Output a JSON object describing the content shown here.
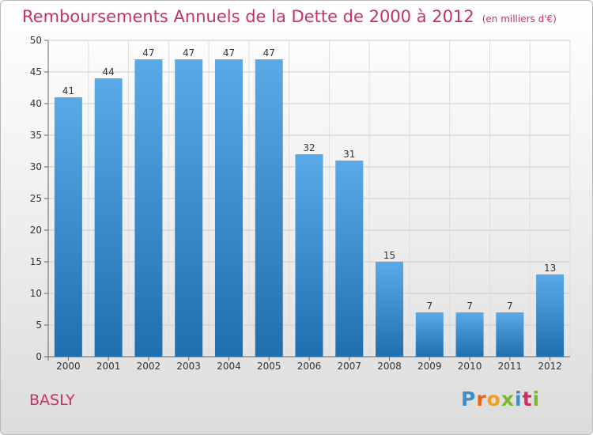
{
  "title": "Remboursements Annuels de la Dette de 2000 à 2012",
  "subtitle": "(en milliers d'€)",
  "commune": "BASLY",
  "logo_text": "Proxiti",
  "colors": {
    "title": "#c8325f",
    "bar_top": "#5aaae8",
    "bar_bottom": "#1f6faf"
  },
  "chart_data": {
    "type": "bar",
    "title": "Remboursements Annuels de la Dette de 2000 à 2012",
    "subtitle": "(en milliers d'€)",
    "categories": [
      "2000",
      "2001",
      "2002",
      "2003",
      "2004",
      "2005",
      "2006",
      "2007",
      "2008",
      "2009",
      "2010",
      "2011",
      "2012"
    ],
    "values": [
      41,
      44,
      47,
      47,
      47,
      47,
      32,
      31,
      15,
      7,
      7,
      7,
      13
    ],
    "ylim": [
      0,
      50
    ],
    "yticks": [
      0,
      5,
      10,
      15,
      20,
      25,
      30,
      35,
      40,
      45,
      50
    ],
    "grid": true,
    "data_labels": true
  }
}
